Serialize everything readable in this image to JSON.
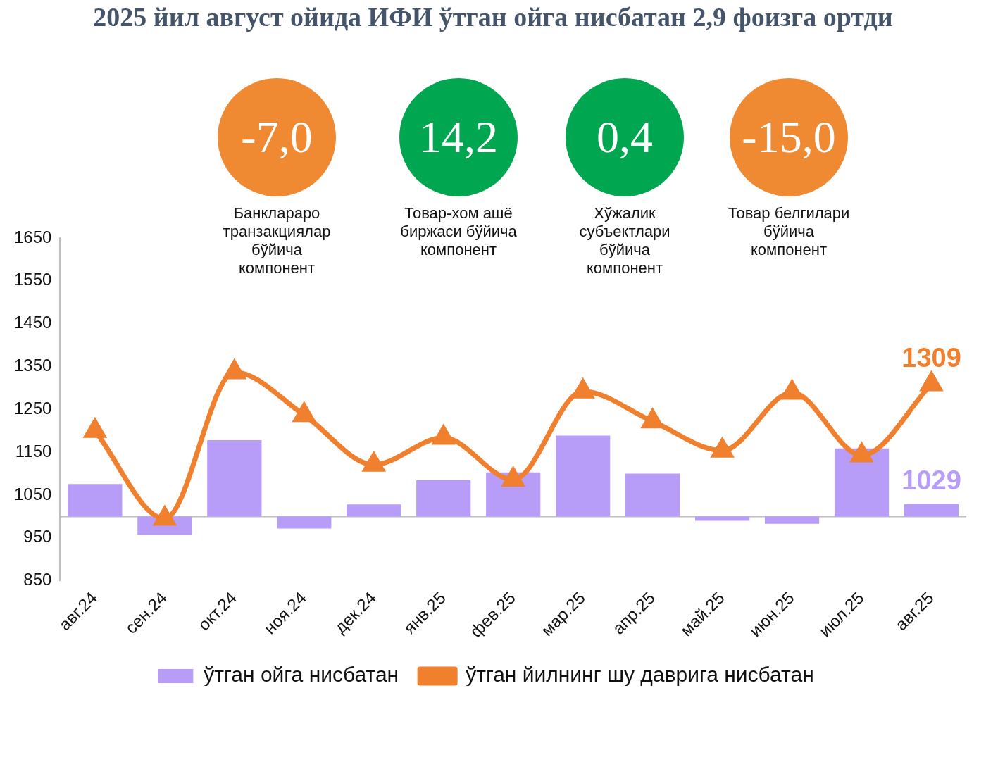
{
  "chart_data": [
    {
      "type": "other",
      "title": "2025 йил август ойида ИФИ ўтган ойга нисбатан 2,9 фоизга ортди",
      "categories": [
        "Банклараро транзакциялар бўйича компонент",
        "Товар-хом ашё биржаси бўйича компонент",
        "Хўжалик субъектлари бўйича компонент",
        "Товар белгилари бўйича компонент"
      ],
      "value_labels": [
        "-7,0",
        "14,2",
        "0,4",
        "-15,0"
      ],
      "colors": [
        "#f08a32",
        "#00a650",
        "#00a650",
        "#f08a32"
      ]
    },
    {
      "type": "bar",
      "categories": [
        "авг.24",
        "сен.24",
        "окт.24",
        "ноя.24",
        "дек.24",
        "янв.25",
        "фев.25",
        "мар.25",
        "апр.25",
        "май.25",
        "июн.25",
        "июл.25",
        "авг.25"
      ],
      "ylim": [
        850,
        1650
      ],
      "yticks": [
        850,
        950,
        1050,
        1150,
        1250,
        1350,
        1450,
        1550,
        1650
      ],
      "grid": false,
      "legend": "bottom",
      "ref_lines": [
        {
          "axis": "y",
          "value": 1000,
          "color": "#bfbfbf"
        }
      ],
      "series": [
        {
          "name": "ўтган ойга нисбатан",
          "type": "bar",
          "color": "#b79cf8",
          "base": [
            1000,
            1000,
            1000,
            1000,
            1000,
            1000,
            1000,
            1000,
            1000,
            1000,
            1000,
            1000,
            1000
          ],
          "values": [
            76,
            -43,
            178,
            -28,
            28,
            85,
            103,
            189,
            100,
            -10,
            -17,
            159,
            29
          ],
          "value_labels": [
            null,
            null,
            null,
            null,
            null,
            null,
            null,
            null,
            null,
            null,
            null,
            null,
            "1029"
          ]
        },
        {
          "name": "ўтган йилнинг шу даврига нисбатан",
          "type": "line",
          "color": "#f07f2e",
          "marker": "triangle",
          "values": [
            1200,
            995,
            1337,
            1237,
            1121,
            1184,
            1086,
            1292,
            1222,
            1154,
            1289,
            1143,
            1309
          ],
          "value_labels": [
            null,
            null,
            null,
            null,
            null,
            null,
            null,
            null,
            null,
            null,
            null,
            null,
            "1309"
          ]
        }
      ]
    }
  ]
}
